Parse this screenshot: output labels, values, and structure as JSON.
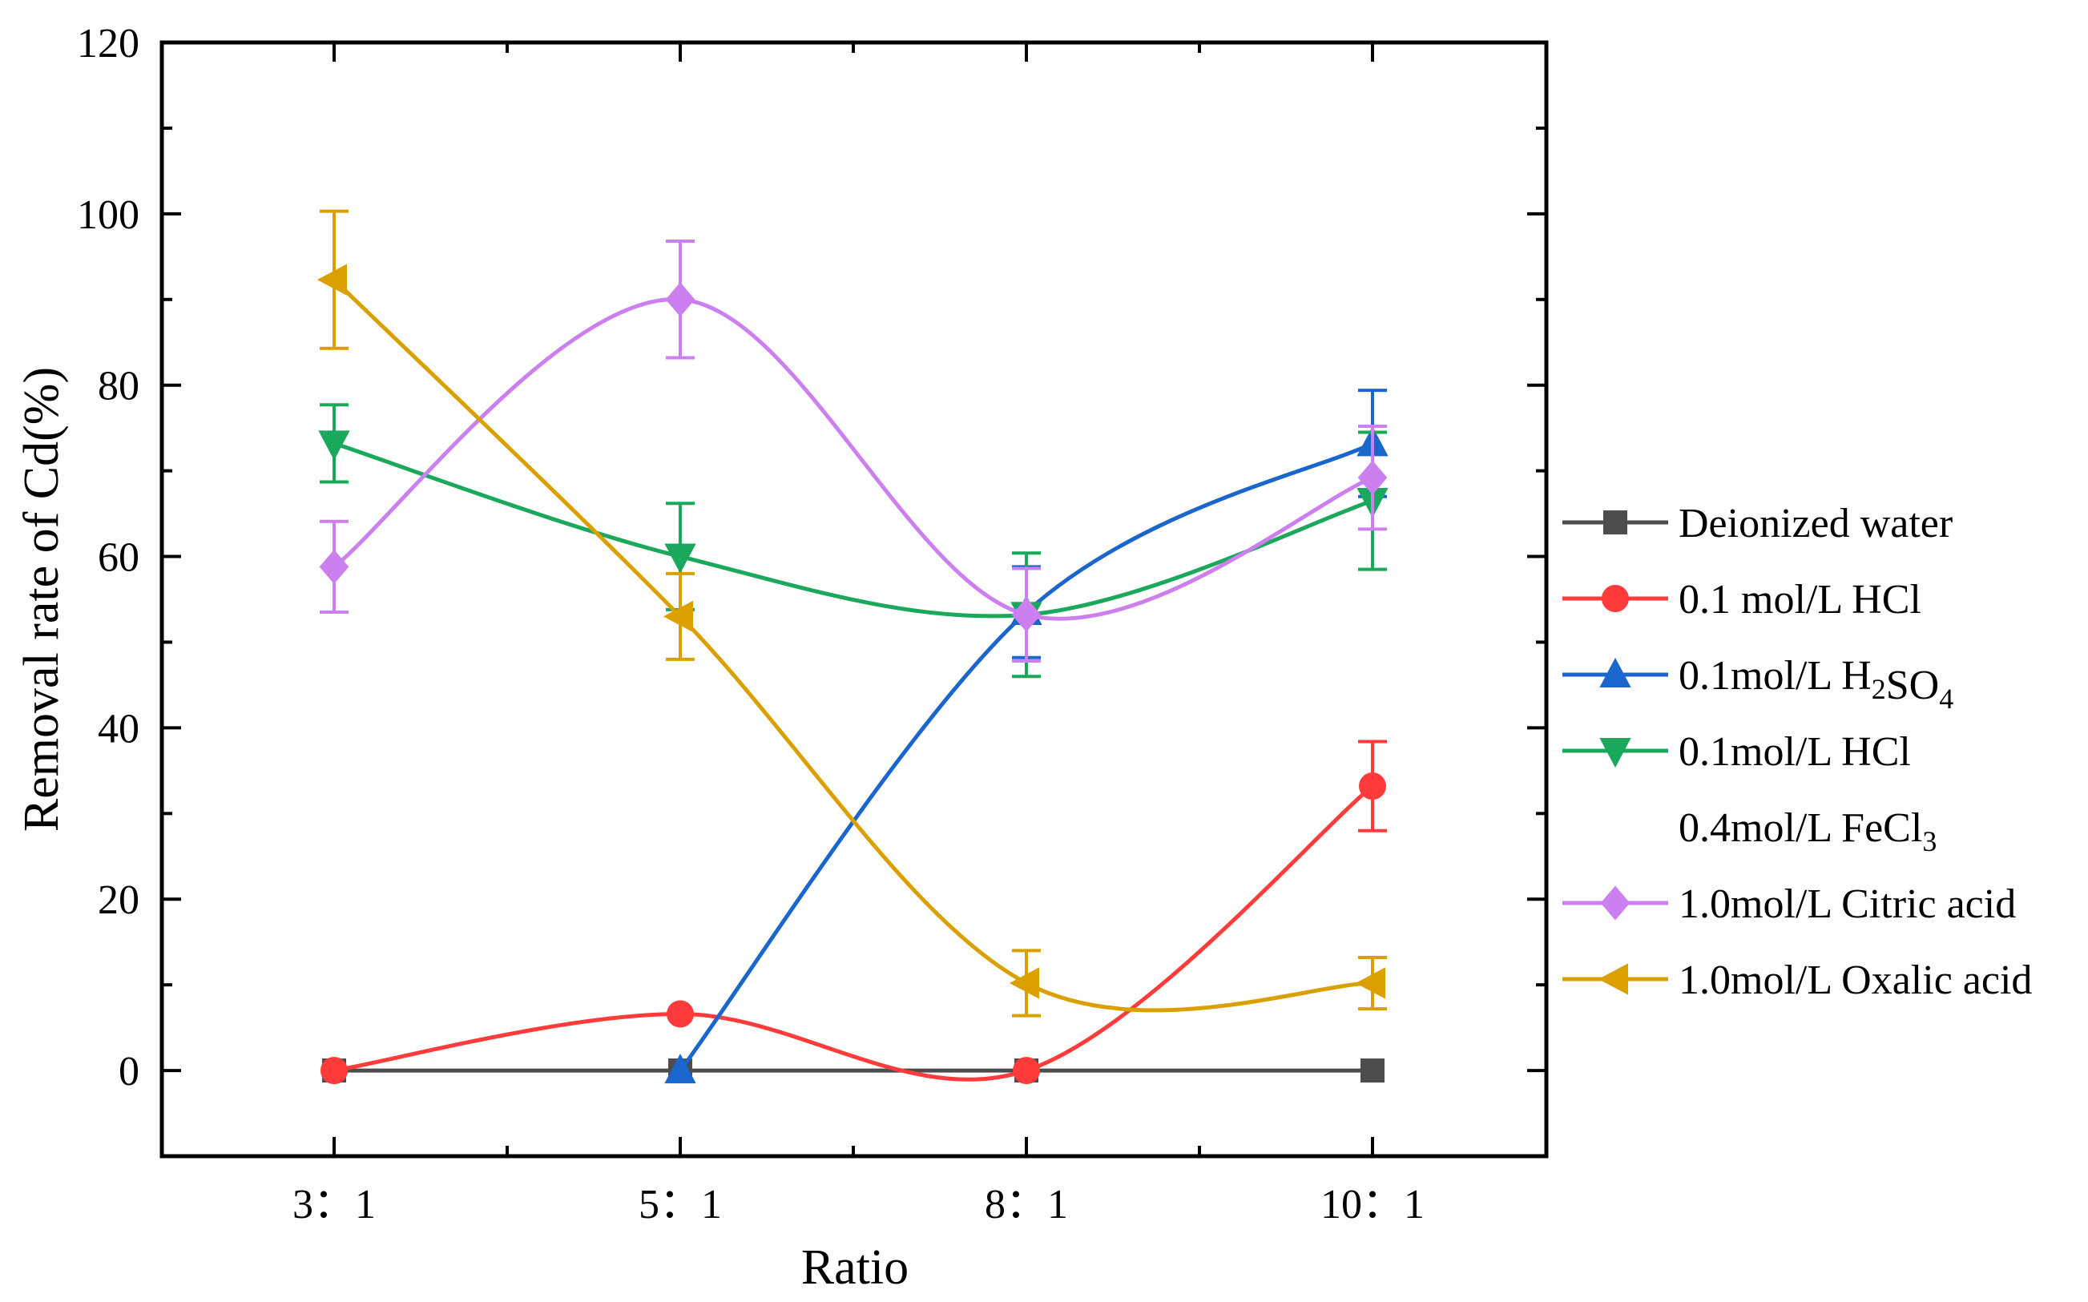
{
  "chart_data": {
    "type": "line",
    "title": "",
    "xlabel": "Ratio",
    "ylabel": "Removal rate of Cd(%)",
    "categories": [
      "3：1",
      "5：1",
      "8：1",
      "10：1"
    ],
    "ylim": [
      -10,
      120
    ],
    "yticks": [
      0,
      20,
      40,
      60,
      80,
      100,
      120
    ],
    "grid": false,
    "legend_position": "right",
    "series": [
      {
        "name": "Deionized water",
        "legend": [
          {
            "t": "Deionized water"
          }
        ],
        "color": "#4d4d4d",
        "marker": "square",
        "values": [
          0,
          0,
          0,
          0
        ],
        "errors": [
          null,
          null,
          null,
          null
        ]
      },
      {
        "name": "0.1 mol/L HCl",
        "legend": [
          {
            "t": "0.1 mol/L HCl"
          }
        ],
        "color": "#ff3b3b",
        "marker": "circle",
        "values": [
          0,
          6.6,
          0,
          33.2
        ],
        "errors": [
          null,
          null,
          null,
          5.2
        ]
      },
      {
        "name": "0.1mol/L H2SO4",
        "legend": [
          {
            "t": "0.1mol/L H"
          },
          {
            "t": "2",
            "sub": true
          },
          {
            "t": "SO"
          },
          {
            "t": "4",
            "sub": true
          }
        ],
        "color": "#1a66cc",
        "marker": "triangle-up",
        "values": [
          null,
          0,
          53.5,
          73.2
        ],
        "errors": [
          null,
          null,
          5.3,
          6.2
        ]
      },
      {
        "name": "0.1mol/L HCl 0.4mol/L FeCl3",
        "legend": [
          {
            "t": "0.1mol/L HCl"
          }
        ],
        "legend2": [
          {
            "t": "0.4mol/L FeCl"
          },
          {
            "t": "3",
            "sub": true
          }
        ],
        "color": "#1aa85c",
        "marker": "triangle-down",
        "values": [
          73.2,
          60,
          53.2,
          66.5
        ],
        "errors": [
          4.5,
          6.2,
          7.2,
          8
        ]
      },
      {
        "name": "1.0mol/L Citric acid",
        "legend": [
          {
            "t": "1.0mol/L Citric acid"
          }
        ],
        "color": "#cc80f0",
        "marker": "diamond",
        "values": [
          58.8,
          90,
          53.2,
          69.2
        ],
        "errors": [
          5.3,
          6.8,
          5.4,
          6
        ]
      },
      {
        "name": "1.0mol/L Oxalic acid",
        "legend": [
          {
            "t": "1.0mol/L Oxalic acid"
          }
        ],
        "color": "#d9a000",
        "marker": "triangle-left",
        "values": [
          92.3,
          53,
          10.2,
          10.2
        ],
        "errors": [
          8,
          5,
          3.8,
          3
        ]
      }
    ]
  }
}
